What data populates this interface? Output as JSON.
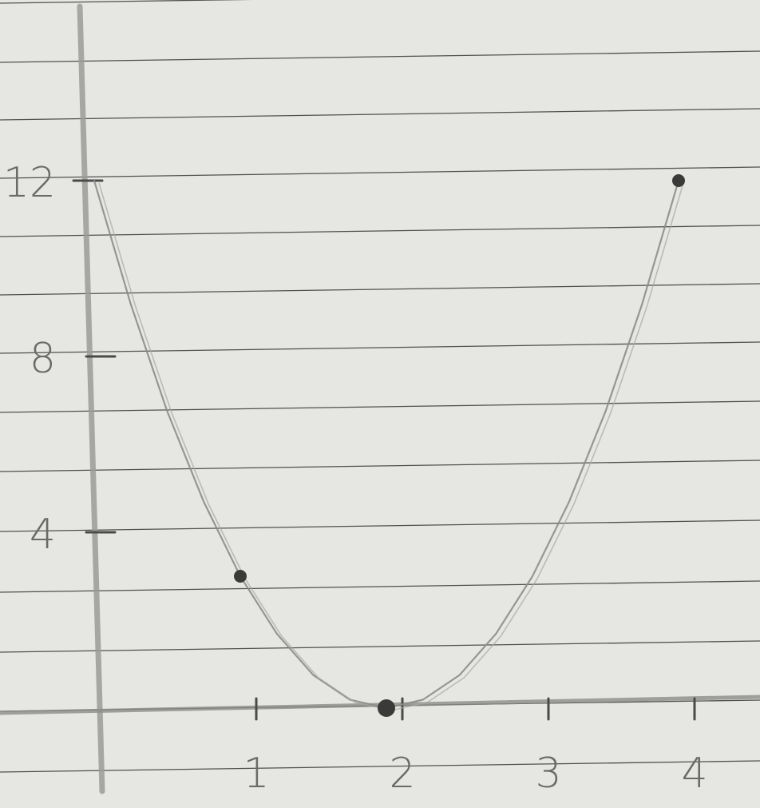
{
  "chart_data": {
    "type": "line",
    "title": "",
    "xlabel": "",
    "ylabel": "",
    "x": [
      0,
      1,
      2,
      4
    ],
    "y": [
      12,
      3,
      0,
      12
    ],
    "marked_points": [
      {
        "x": 1,
        "y": 3
      },
      {
        "x": 2,
        "y": 0
      },
      {
        "x": 4,
        "y": 12
      }
    ],
    "curve_samples": {
      "x": [
        0,
        0.25,
        0.5,
        0.75,
        1,
        1.25,
        1.5,
        1.75,
        2,
        2.25,
        2.5,
        2.75,
        3,
        3.25,
        3.5,
        3.75,
        4
      ],
      "y": [
        12,
        9.19,
        6.75,
        4.69,
        3,
        1.69,
        0.75,
        0.19,
        0,
        0.19,
        0.75,
        1.69,
        3,
        4.69,
        6.75,
        9.19,
        12
      ]
    },
    "xlim": [
      -0.8,
      5.3
    ],
    "ylim": [
      -2,
      18
    ],
    "x_ticks": [
      1,
      2,
      3,
      4
    ],
    "y_ticks": [
      4,
      8,
      12
    ],
    "x_tick_labels": [
      "1",
      "2",
      "3",
      "4"
    ],
    "y_tick_labels": [
      "4",
      "8",
      "12"
    ],
    "grid": false,
    "legend": "none"
  }
}
